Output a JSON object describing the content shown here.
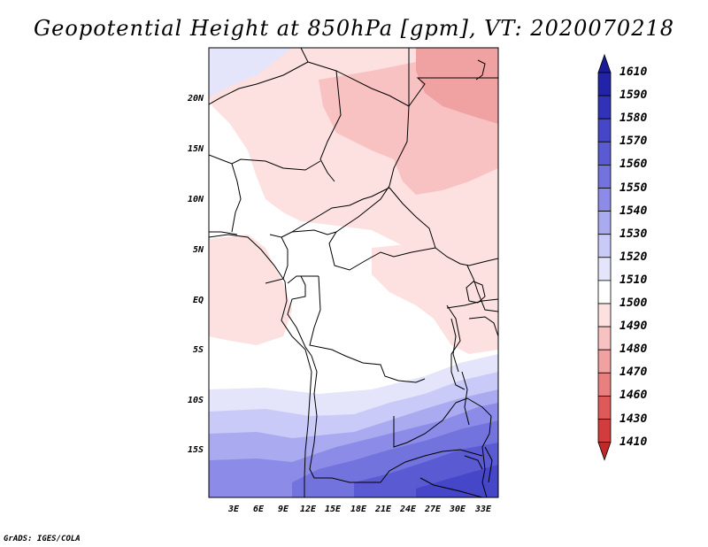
{
  "title": "Geopotential Height at 850hPa [gpm], VT: 2020070218",
  "credit": "GrADS: IGES/COLA",
  "lat_labels": [
    "20N",
    "15N",
    "10N",
    "5N",
    "EQ",
    "5S",
    "10S",
    "15S"
  ],
  "lon_labels": [
    "3E",
    "6E",
    "9E",
    "12E",
    "15E",
    "18E",
    "21E",
    "24E",
    "27E",
    "30E",
    "33E"
  ],
  "colorbar": {
    "labels": [
      "1610",
      "1590",
      "1580",
      "1570",
      "1560",
      "1550",
      "1540",
      "1530",
      "1520",
      "1510",
      "1500",
      "1490",
      "1480",
      "1470",
      "1460",
      "1430",
      "1410"
    ],
    "colors": [
      "#1c1c96",
      "#2323a8",
      "#3232b8",
      "#4646c8",
      "#5a5ad2",
      "#7373de",
      "#8c8ce8",
      "#aaaaf0",
      "#cacaf8",
      "#e4e4fb",
      "#ffffff",
      "#fde0e0",
      "#f9c2c2",
      "#f0a2a2",
      "#e88080",
      "#de5a5a",
      "#d23c3c",
      "#be2a2a"
    ]
  }
}
